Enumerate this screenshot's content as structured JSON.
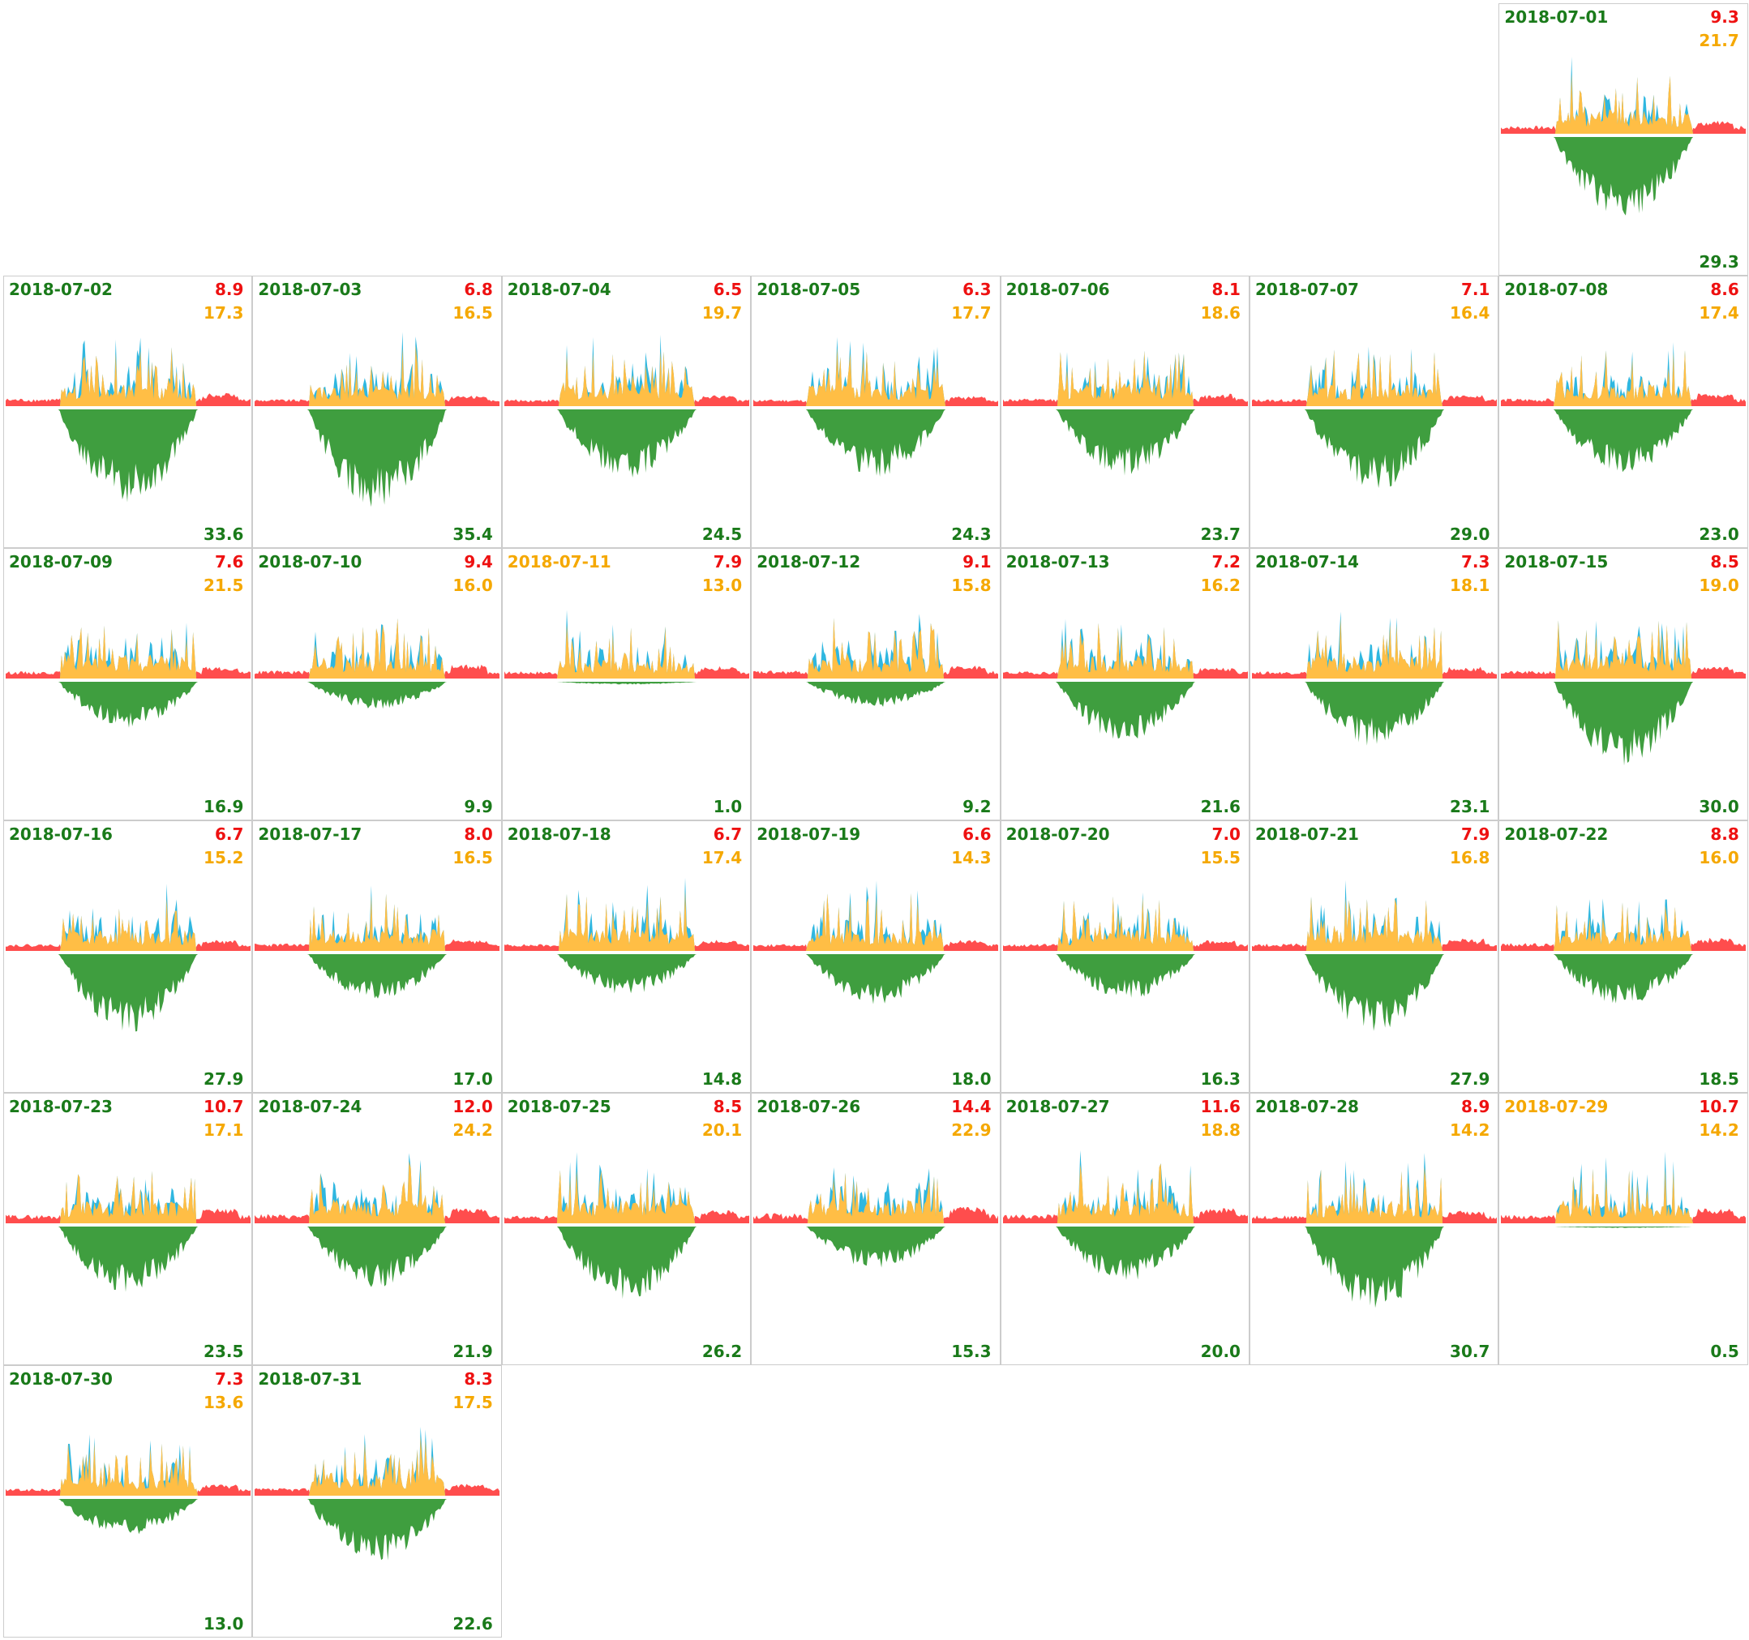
{
  "colors": {
    "date_normal": "#1a7a1a",
    "date_low": "#f5a800",
    "import": "#ee1111",
    "self_use": "#f5a800",
    "pv": "#1a7a1a",
    "grid_import_area": "#ff4d4d",
    "self_consumption_area": "#ffbe45",
    "export_area": "#2fb7e0",
    "generation_area": "#3f9e3f"
  },
  "chart_data": {
    "type": "area",
    "layout": "calendar-month",
    "first_weekday_column": 6,
    "days": [
      {
        "date": "2018-07-01",
        "import": "9.3",
        "self_use": "21.7",
        "pv": "29.3",
        "low": false
      },
      {
        "date": "2018-07-02",
        "import": "8.9",
        "self_use": "17.3",
        "pv": "33.6",
        "low": false
      },
      {
        "date": "2018-07-03",
        "import": "6.8",
        "self_use": "16.5",
        "pv": "35.4",
        "low": false
      },
      {
        "date": "2018-07-04",
        "import": "6.5",
        "self_use": "19.7",
        "pv": "24.5",
        "low": false
      },
      {
        "date": "2018-07-05",
        "import": "6.3",
        "self_use": "17.7",
        "pv": "24.3",
        "low": false
      },
      {
        "date": "2018-07-06",
        "import": "8.1",
        "self_use": "18.6",
        "pv": "23.7",
        "low": false
      },
      {
        "date": "2018-07-07",
        "import": "7.1",
        "self_use": "16.4",
        "pv": "29.0",
        "low": false
      },
      {
        "date": "2018-07-08",
        "import": "8.6",
        "self_use": "17.4",
        "pv": "23.0",
        "low": false
      },
      {
        "date": "2018-07-09",
        "import": "7.6",
        "self_use": "21.5",
        "pv": "16.9",
        "low": false
      },
      {
        "date": "2018-07-10",
        "import": "9.4",
        "self_use": "16.0",
        "pv": "9.9",
        "low": false
      },
      {
        "date": "2018-07-11",
        "import": "7.9",
        "self_use": "13.0",
        "pv": "1.0",
        "low": true
      },
      {
        "date": "2018-07-12",
        "import": "9.1",
        "self_use": "15.8",
        "pv": "9.2",
        "low": false
      },
      {
        "date": "2018-07-13",
        "import": "7.2",
        "self_use": "16.2",
        "pv": "21.6",
        "low": false
      },
      {
        "date": "2018-07-14",
        "import": "7.3",
        "self_use": "18.1",
        "pv": "23.1",
        "low": false
      },
      {
        "date": "2018-07-15",
        "import": "8.5",
        "self_use": "19.0",
        "pv": "30.0",
        "low": false
      },
      {
        "date": "2018-07-16",
        "import": "6.7",
        "self_use": "15.2",
        "pv": "27.9",
        "low": false
      },
      {
        "date": "2018-07-17",
        "import": "8.0",
        "self_use": "16.5",
        "pv": "17.0",
        "low": false
      },
      {
        "date": "2018-07-18",
        "import": "6.7",
        "self_use": "17.4",
        "pv": "14.8",
        "low": false
      },
      {
        "date": "2018-07-19",
        "import": "6.6",
        "self_use": "14.3",
        "pv": "18.0",
        "low": false
      },
      {
        "date": "2018-07-20",
        "import": "7.0",
        "self_use": "15.5",
        "pv": "16.3",
        "low": false
      },
      {
        "date": "2018-07-21",
        "import": "7.9",
        "self_use": "16.8",
        "pv": "27.9",
        "low": false
      },
      {
        "date": "2018-07-22",
        "import": "8.8",
        "self_use": "16.0",
        "pv": "18.5",
        "low": false
      },
      {
        "date": "2018-07-23",
        "import": "10.7",
        "self_use": "17.1",
        "pv": "23.5",
        "low": false
      },
      {
        "date": "2018-07-24",
        "import": "12.0",
        "self_use": "24.2",
        "pv": "21.9",
        "low": false
      },
      {
        "date": "2018-07-25",
        "import": "8.5",
        "self_use": "20.1",
        "pv": "26.2",
        "low": false
      },
      {
        "date": "2018-07-26",
        "import": "14.4",
        "self_use": "22.9",
        "pv": "15.3",
        "low": false
      },
      {
        "date": "2018-07-27",
        "import": "11.6",
        "self_use": "18.8",
        "pv": "20.0",
        "low": false
      },
      {
        "date": "2018-07-28",
        "import": "8.9",
        "self_use": "14.2",
        "pv": "30.7",
        "low": false
      },
      {
        "date": "2018-07-29",
        "import": "10.7",
        "self_use": "14.2",
        "pv": "0.5",
        "low": true
      },
      {
        "date": "2018-07-30",
        "import": "7.3",
        "self_use": "13.6",
        "pv": "13.0",
        "low": false
      },
      {
        "date": "2018-07-31",
        "import": "8.3",
        "self_use": "17.5",
        "pv": "22.6",
        "low": false
      }
    ]
  }
}
